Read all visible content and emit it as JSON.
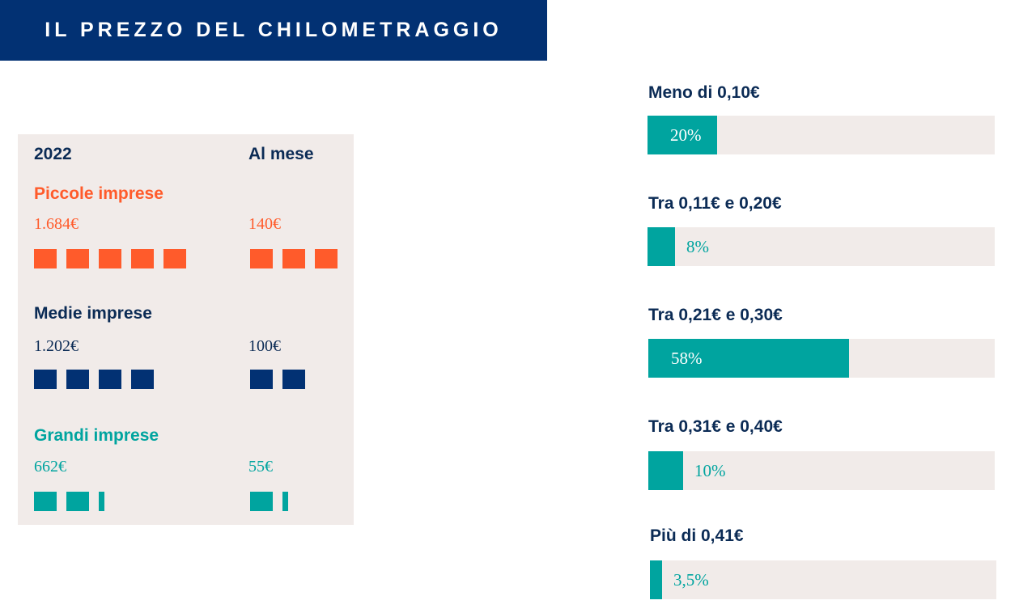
{
  "title": "IL PREZZO DEL CHILOMETRAGGIO",
  "colors": {
    "navy": "#023173",
    "orange": "#ff5b2b",
    "teal": "#00a49f",
    "panel": "#f1ebe9",
    "text_dark": "#0b2b55"
  },
  "chart_data": [
    {
      "type": "table",
      "columns": [
        "2022",
        "Al mese"
      ],
      "rows": [
        {
          "name": "Piccole imprese",
          "year_value": "1.684€",
          "month_value": "140€",
          "year_icons": 5,
          "month_icons": 3,
          "color": "#ff5b2b"
        },
        {
          "name": "Medie imprese",
          "year_value": "1.202€",
          "month_value": "100€",
          "year_icons": 4,
          "month_icons": 2,
          "color": "#023173"
        },
        {
          "name": "Grandi imprese",
          "year_value": "662€",
          "month_value": "55€",
          "year_icons": 2.25,
          "month_icons": 1.25,
          "color": "#00a49f"
        }
      ]
    },
    {
      "type": "bar",
      "orientation": "horizontal",
      "categories": [
        "Meno di 0,10€",
        "Tra 0,11€ e 0,20€",
        "Tra 0,21€ e 0,30€",
        "Tra 0,31€ e 0,40€",
        "Più di 0,41€"
      ],
      "values": [
        20,
        8,
        58,
        10,
        3.5
      ],
      "value_labels": [
        "20%",
        "8%",
        "58%",
        "10%",
        "3,5%"
      ],
      "xlim": [
        0,
        100
      ]
    }
  ]
}
